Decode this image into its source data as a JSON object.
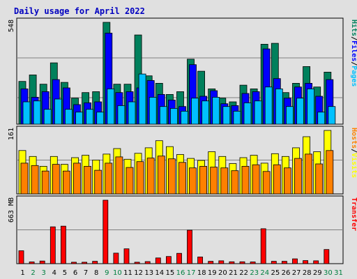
{
  "title": "Daily usage for April 2022",
  "colors": {
    "hits": "#00805c",
    "files": "#0000ff",
    "pages": "#00c0ff",
    "visits": "#ffff00",
    "hosts": "#ff8000",
    "transfer": "#ff0000",
    "weekend_label": "#008040",
    "weekday_label": "#000000",
    "panel_bg": "#e0e0e0",
    "grid": "#808080"
  },
  "chart_data": [
    {
      "type": "bar",
      "panel": "hits-files-pages",
      "ylabel_parts": [
        "Hits",
        "/",
        "Files",
        "/",
        "Pages"
      ],
      "ymax_label": "548",
      "ylim": [
        0,
        548
      ],
      "categories": [
        "1",
        "2",
        "3",
        "4",
        "5",
        "6",
        "7",
        "8",
        "9",
        "10",
        "11",
        "12",
        "13",
        "14",
        "15",
        "16",
        "17",
        "18",
        "19",
        "20",
        "21",
        "22",
        "23",
        "24",
        "25",
        "26",
        "27",
        "28",
        "29",
        "30",
        "31"
      ],
      "series": [
        {
          "key": "hits",
          "values": [
            230,
            265,
            215,
            330,
            225,
            140,
            170,
            175,
            548,
            215,
            215,
            480,
            260,
            220,
            160,
            175,
            350,
            285,
            190,
            140,
            120,
            210,
            190,
            430,
            435,
            170,
            220,
            310,
            200,
            280,
            0
          ]
        },
        {
          "key": "files",
          "values": [
            190,
            145,
            175,
            240,
            195,
            105,
            115,
            120,
            490,
            170,
            175,
            195,
            235,
            160,
            130,
            95,
            320,
            150,
            180,
            110,
            100,
            165,
            175,
            405,
            245,
            140,
            200,
            220,
            150,
            240,
            0
          ]
        },
        {
          "key": "pages",
          "values": [
            120,
            125,
            80,
            135,
            80,
            65,
            80,
            65,
            190,
            100,
            120,
            270,
            145,
            95,
            85,
            70,
            140,
            125,
            145,
            95,
            70,
            115,
            125,
            200,
            190,
            95,
            140,
            190,
            65,
            95,
            0
          ]
        }
      ]
    },
    {
      "type": "bar",
      "panel": "visits-hosts",
      "ylabel_parts": [
        "Hosts",
        "/",
        "Visits"
      ],
      "ymax_label": "161",
      "ylim": [
        0,
        161
      ],
      "categories": [
        "1",
        "2",
        "3",
        "4",
        "5",
        "6",
        "7",
        "8",
        "9",
        "10",
        "11",
        "12",
        "13",
        "14",
        "15",
        "16",
        "17",
        "18",
        "19",
        "20",
        "21",
        "22",
        "23",
        "24",
        "25",
        "26",
        "27",
        "28",
        "29",
        "30",
        "31"
      ],
      "series": [
        {
          "key": "visits",
          "values": [
            110,
            95,
            70,
            95,
            75,
            92,
            98,
            86,
            101,
            115,
            88,
            103,
            117,
            135,
            120,
            100,
            90,
            85,
            107,
            95,
            77,
            92,
            98,
            78,
            102,
            95,
            117,
            145,
            107,
            161,
            0
          ]
        },
        {
          "key": "hosts",
          "values": [
            78,
            72,
            58,
            75,
            58,
            78,
            70,
            60,
            78,
            94,
            67,
            82,
            91,
            96,
            89,
            80,
            66,
            70,
            68,
            66,
            59,
            70,
            74,
            57,
            74,
            66,
            90,
            101,
            76,
            110,
            0
          ]
        }
      ]
    },
    {
      "type": "bar",
      "panel": "transfer",
      "ylabel_parts": [
        "Transfer"
      ],
      "ymax_label": "663 MB",
      "ylim": [
        0,
        663
      ],
      "categories": [
        "1",
        "2",
        "3",
        "4",
        "5",
        "6",
        "7",
        "8",
        "9",
        "10",
        "11",
        "12",
        "13",
        "14",
        "15",
        "16",
        "17",
        "18",
        "19",
        "20",
        "21",
        "22",
        "23",
        "24",
        "25",
        "26",
        "27",
        "28",
        "29",
        "30",
        "31"
      ],
      "series": [
        {
          "key": "transfer",
          "values": [
            135,
            18,
            28,
            385,
            392,
            15,
            15,
            25,
            663,
            110,
            155,
            15,
            22,
            60,
            75,
            108,
            350,
            70,
            25,
            30,
            20,
            20,
            18,
            365,
            25,
            25,
            50,
            32,
            30,
            148,
            0
          ]
        }
      ]
    }
  ],
  "x_labels": [
    {
      "text": "1",
      "weekend": false
    },
    {
      "text": "2",
      "weekend": true
    },
    {
      "text": "3",
      "weekend": true
    },
    {
      "text": "4",
      "weekend": false
    },
    {
      "text": "5",
      "weekend": false
    },
    {
      "text": "6",
      "weekend": false
    },
    {
      "text": "7",
      "weekend": false
    },
    {
      "text": "8",
      "weekend": false
    },
    {
      "text": "9",
      "weekend": true
    },
    {
      "text": "10",
      "weekend": true
    },
    {
      "text": "11",
      "weekend": false
    },
    {
      "text": "12",
      "weekend": false
    },
    {
      "text": "13",
      "weekend": false
    },
    {
      "text": "14",
      "weekend": false
    },
    {
      "text": "15",
      "weekend": false
    },
    {
      "text": "16",
      "weekend": true
    },
    {
      "text": "17",
      "weekend": true
    },
    {
      "text": "18",
      "weekend": false
    },
    {
      "text": "19",
      "weekend": false
    },
    {
      "text": "20",
      "weekend": false
    },
    {
      "text": "21",
      "weekend": false
    },
    {
      "text": "22",
      "weekend": false
    },
    {
      "text": "23",
      "weekend": true
    },
    {
      "text": "24",
      "weekend": true
    },
    {
      "text": "25",
      "weekend": false
    },
    {
      "text": "26",
      "weekend": false
    },
    {
      "text": "27",
      "weekend": false
    },
    {
      "text": "28",
      "weekend": false
    },
    {
      "text": "29",
      "weekend": false
    },
    {
      "text": "30",
      "weekend": true
    },
    {
      "text": "31",
      "weekend": true
    }
  ]
}
